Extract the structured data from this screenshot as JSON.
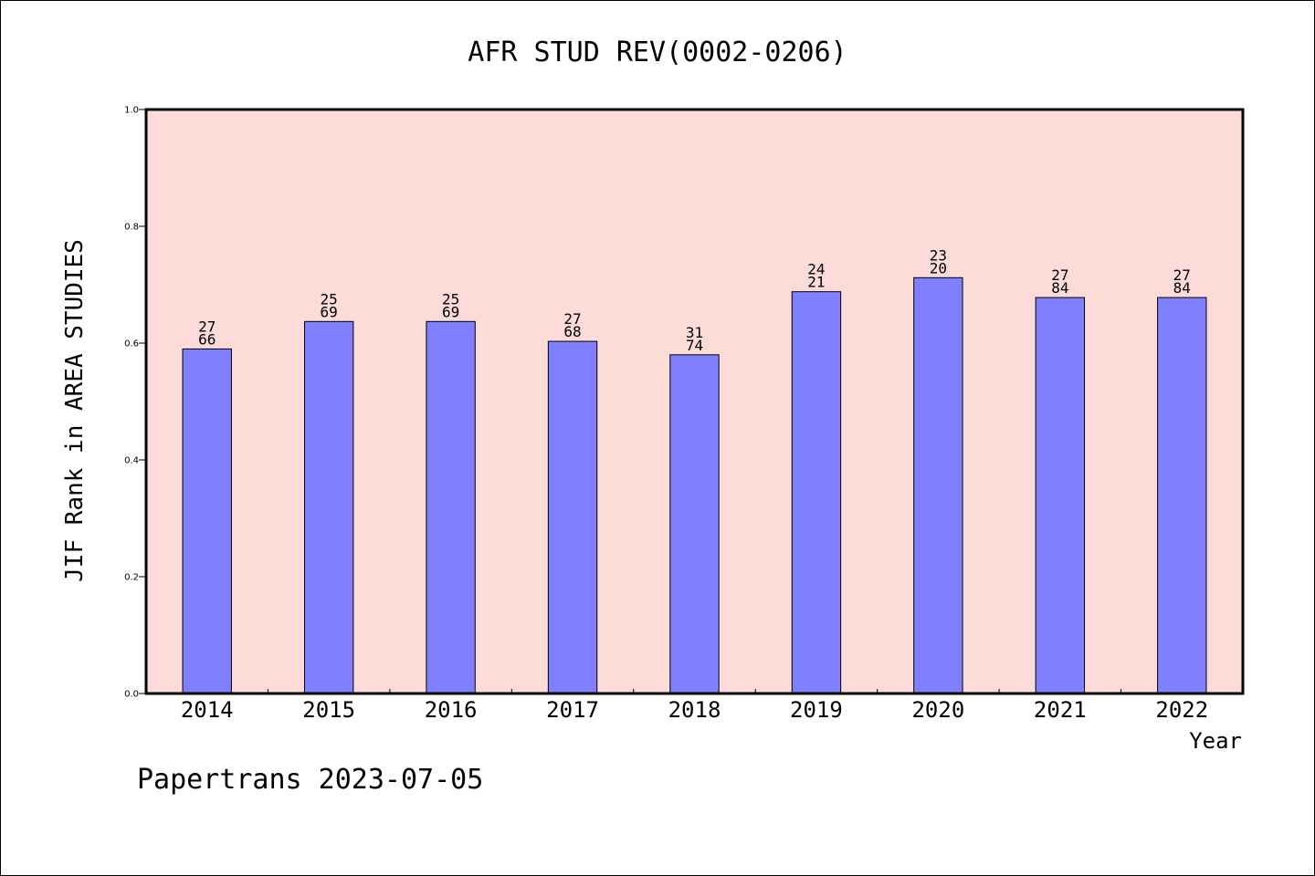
{
  "chart_data": {
    "type": "bar",
    "title": "AFR STUD REV(0002-0206)",
    "xlabel": "Year",
    "ylabel": "JIF Rank in AREA STUDIES",
    "ylim": [
      0,
      1.0
    ],
    "yticks": [
      "0.0",
      "0.2",
      "0.4",
      "0.6",
      "0.8",
      "1.0"
    ],
    "grid": false,
    "categories": [
      "2014",
      "2015",
      "2016",
      "2017",
      "2018",
      "2019",
      "2020",
      "2021",
      "2022"
    ],
    "values": [
      0.59,
      0.637,
      0.637,
      0.603,
      0.58,
      0.688,
      0.712,
      0.678,
      0.678
    ],
    "labels_top": [
      "27",
      "25",
      "25",
      "27",
      "31",
      "24",
      "23",
      "27",
      "27"
    ],
    "labels_bottom": [
      "66",
      "69",
      "69",
      "68",
      "74",
      "21",
      "20",
      "84",
      "84"
    ],
    "colors": {
      "bar": "#8080ff",
      "plot_background": "#fddbd8",
      "axes": "#000000"
    }
  },
  "footer": {
    "text": "Papertrans 2023-07-05"
  }
}
